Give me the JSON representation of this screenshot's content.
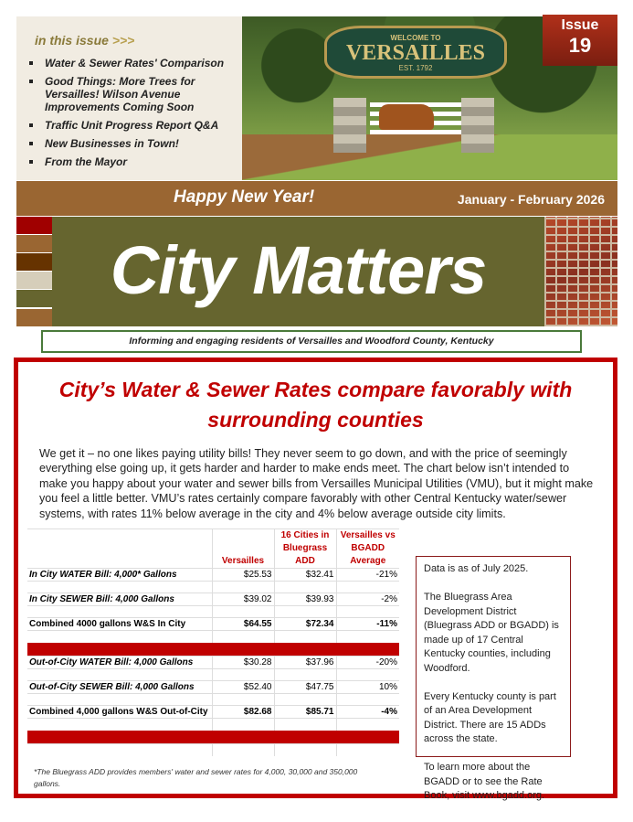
{
  "toc": {
    "heading": "in this issue",
    "arrows": ">>>",
    "items": [
      "Water & Sewer Rates' Comparison",
      "Good Things: More Trees for Versailles!  Wilson Avenue Improvements Coming Soon",
      "Traffic Unit Progress Report Q&A",
      "New Businesses in Town!",
      "From the Mayor"
    ]
  },
  "photo": {
    "sign_top": "WELCOME TO",
    "sign_name": "VERSAILLES",
    "sign_est": "EST. 1792"
  },
  "issue": {
    "label": "Issue",
    "number": "19"
  },
  "band": {
    "greeting": "Happy New Year!",
    "date": "January - February 2026"
  },
  "masthead": {
    "title": "City Matters",
    "tagline": "Informing and engaging residents of Versailles and Woodford County, Kentucky"
  },
  "colors": {
    "accent_red": "#c00000",
    "brown": "#9a6632",
    "olive": "#66652f",
    "beige": "#f1ece2"
  },
  "article": {
    "title": "City’s Water & Sewer Rates compare favorably with surrounding counties",
    "body": "We get it – no one likes paying utility bills! They never seem to go down, and with the price of seemingly everything else going up, it gets harder and harder to make ends meet. The chart below isn’t intended to make you happy about your water and sewer bills from Versailles Municipal Utilities (VMU), but it might make you feel a little better. VMU’s rates certainly compare favorably with other Central Kentucky water/sewer systems, with rates 11% below average in the city and 4% below average outside city limits.",
    "table": {
      "headers": [
        "",
        "Versailles",
        "16 Cities in Bluegrass ADD",
        "Versailles vs BGADD Average"
      ],
      "rows": [
        [
          "In City WATER Bill: 4,000* Gallons",
          "$25.53",
          "$32.41",
          "-21%"
        ],
        [
          "In City SEWER Bill: 4,000 Gallons",
          "$39.02",
          "$39.93",
          "-2%"
        ],
        [
          "Combined 4000 gallons W&S In City",
          "$64.55",
          "$72.34",
          "-11%"
        ],
        [
          "Out-of-City WATER Bill: 4,000 Gallons",
          "$30.28",
          "$37.96",
          "-20%"
        ],
        [
          "Out-of-City SEWER Bill: 4,000 Gallons",
          "$52.40",
          "$47.75",
          "10%"
        ],
        [
          "Combined 4,000 gallons W&S Out-of-City",
          "$82.68",
          "$85.71",
          "-4%"
        ]
      ],
      "footnote": "*The Bluegrass ADD provides members' water and sewer rates for 4,000, 30,000 and 350,000 gallons."
    },
    "sidebar": [
      "Data is as of July 2025.",
      "The Bluegrass Area Development District (Bluegrass ADD or BGADD) is made up of 17 Central Kentucky counties, including Woodford.",
      "Every Kentucky county is part of an Area Development District. There are 15 ADDs across the state.",
      "To learn more about the BGADD or to see the Rate Book, visit www.bgadd.org."
    ]
  }
}
